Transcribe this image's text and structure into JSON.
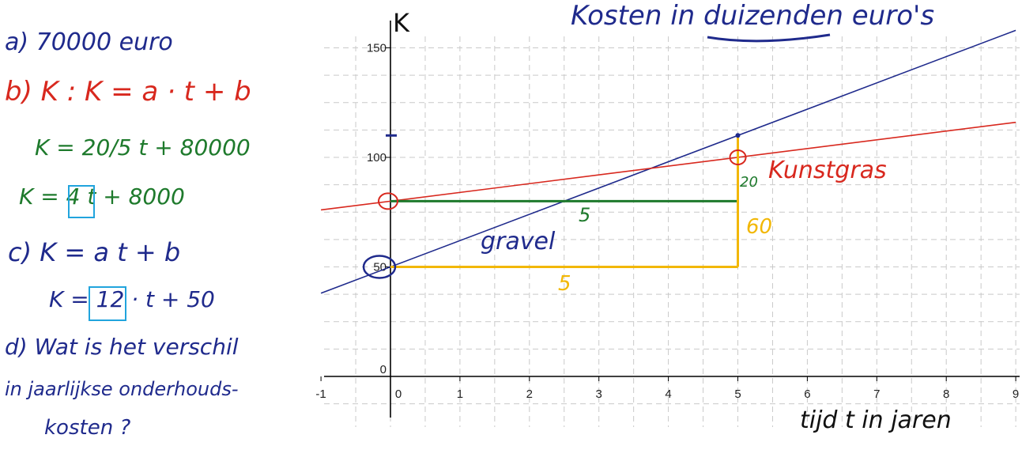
{
  "whiteboard": {
    "title_line": "Kosten in duizenden euro's",
    "axis_k": "K",
    "x_caption": "tijd t in jaren",
    "notes": [
      {
        "key": "a",
        "text": "a)  70000 euro"
      },
      {
        "key": "b",
        "text": "b)  K :  K = a · t + b"
      },
      {
        "key": "b1",
        "text": "K = 20/5 t  + 80000"
      },
      {
        "key": "b2",
        "text": "K = 4 t  +  8000"
      },
      {
        "key": "c",
        "text": "c)  K = a t  +  b"
      },
      {
        "key": "c1",
        "text": "K = 12 · t  +  50"
      },
      {
        "key": "d1",
        "text": "d)  Wat is het verschil"
      },
      {
        "key": "d2",
        "text": "in  jaarlijkse onderhouds-"
      },
      {
        "key": "d3",
        "text": "kosten ?"
      }
    ],
    "boxed_values": [
      "4",
      "12"
    ],
    "graph_labels": {
      "kunstgras": "Kunstgras",
      "gravel": "gravel",
      "green_run": "5",
      "green_rise": "20",
      "gold_run": "5",
      "gold_rise": "60"
    },
    "colors": {
      "blue": "#1f2a8c",
      "red": "#d8281e",
      "green": "#1e7a2c",
      "gold": "#f2b705"
    }
  },
  "chart_data": {
    "type": "line",
    "xlabel": "tijd t in jaren",
    "ylabel": "K",
    "xlim": [
      -1,
      9
    ],
    "ylim": [
      -20,
      160
    ],
    "x_ticks": [
      -1,
      0,
      1,
      2,
      3,
      4,
      5,
      6,
      7,
      8,
      9
    ],
    "y_ticks": [
      0,
      50,
      100,
      150
    ],
    "grid": true,
    "series": [
      {
        "name": "gravel",
        "color": "#1f2a8c",
        "points": [
          [
            -1,
            38
          ],
          [
            9,
            158
          ]
        ]
      },
      {
        "name": "kunstgras",
        "color": "#d8281e",
        "points": [
          [
            -1,
            76
          ],
          [
            9,
            116
          ]
        ]
      }
    ],
    "marked_points": [
      [
        0,
        80
      ],
      [
        0,
        50
      ],
      [
        5,
        100
      ],
      [
        5,
        110
      ]
    ]
  }
}
